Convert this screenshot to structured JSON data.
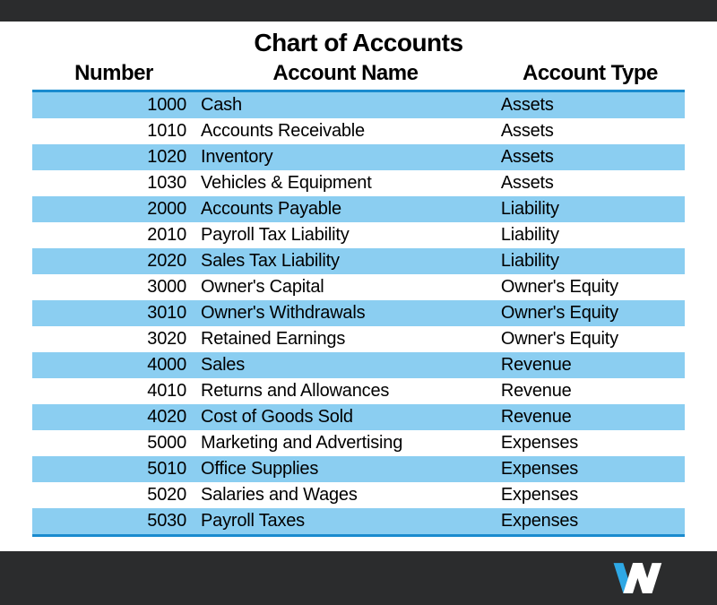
{
  "layout": {
    "top_bar_height": 24,
    "bottom_bar_height": 60,
    "bar_color": "#2b2c2d",
    "background_color": "#ffffff"
  },
  "title": "Chart of Accounts",
  "title_fontsize": 28,
  "columns": [
    {
      "key": "number",
      "label": "Number",
      "align": "right",
      "header_align": "center"
    },
    {
      "key": "name",
      "label": "Account Name",
      "align": "left",
      "header_align": "center"
    },
    {
      "key": "type",
      "label": "Account Type",
      "align": "left",
      "header_align": "center"
    }
  ],
  "header_fontsize": 24,
  "row_fontsize": 20,
  "stripe_color": "#8bcef1",
  "plain_color": "#ffffff",
  "header_rule_color": "#1a8bce",
  "bottom_rule_color": "#1a8bce",
  "text_color": "#000000",
  "rows": [
    {
      "number": "1000",
      "name": "Cash",
      "type": "Assets"
    },
    {
      "number": "1010",
      "name": "Accounts Receivable",
      "type": "Assets"
    },
    {
      "number": "1020",
      "name": "Inventory",
      "type": "Assets"
    },
    {
      "number": "1030",
      "name": "Vehicles & Equipment",
      "type": "Assets"
    },
    {
      "number": "2000",
      "name": "Accounts Payable",
      "type": "Liability"
    },
    {
      "number": "2010",
      "name": "Payroll Tax Liability",
      "type": "Liability"
    },
    {
      "number": "2020",
      "name": "Sales Tax Liability",
      "type": "Liability"
    },
    {
      "number": "3000",
      "name": "Owner's Capital",
      "type": "Owner's Equity"
    },
    {
      "number": "3010",
      "name": "Owner's Withdrawals",
      "type": "Owner's Equity"
    },
    {
      "number": "3020",
      "name": "Retained Earnings",
      "type": "Owner's Equity"
    },
    {
      "number": "4000",
      "name": "Sales",
      "type": "Revenue"
    },
    {
      "number": "4010",
      "name": "Returns and Allowances",
      "type": "Revenue"
    },
    {
      "number": "4020",
      "name": "Cost of Goods Sold",
      "type": "Revenue"
    },
    {
      "number": "5000",
      "name": "Marketing and Advertising",
      "type": "Expenses"
    },
    {
      "number": "5010",
      "name": "Office Supplies",
      "type": "Expenses"
    },
    {
      "number": "5020",
      "name": "Salaries and Wages",
      "type": "Expenses"
    },
    {
      "number": "5030",
      "name": "Payroll Taxes",
      "type": "Expenses"
    }
  ],
  "logo": {
    "name": "w-logo",
    "accent_color": "#2ea8e5",
    "main_color": "#ffffff"
  }
}
